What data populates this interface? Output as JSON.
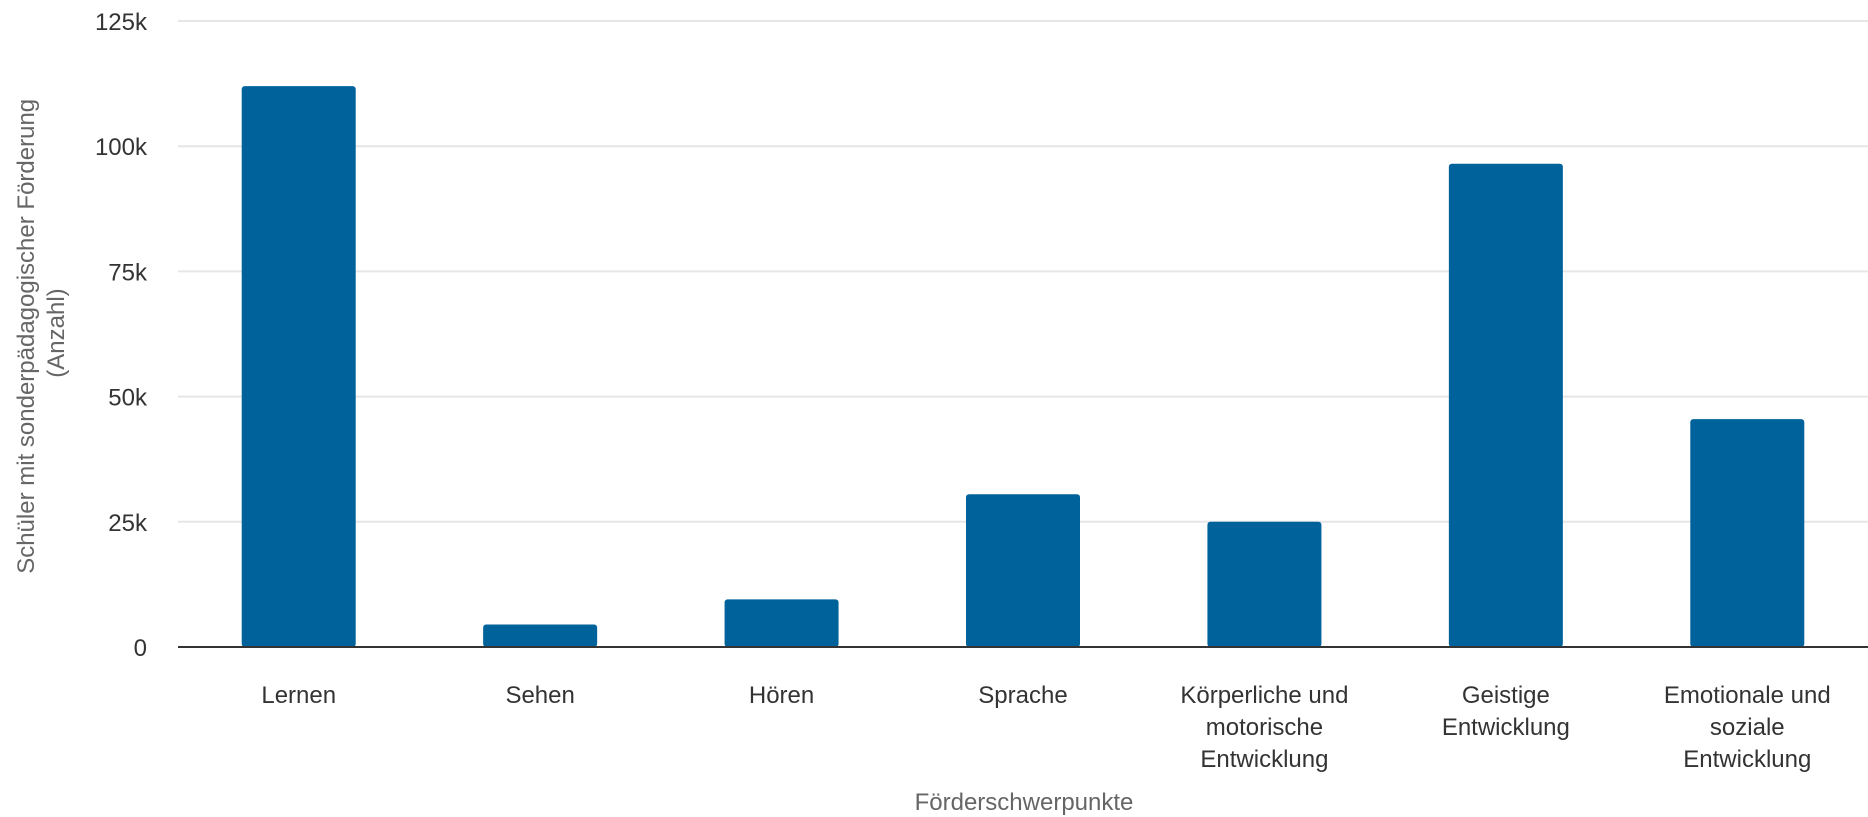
{
  "chart_data": {
    "type": "bar",
    "categories": [
      "Lernen",
      "Sehen",
      "Hören",
      "Sprache",
      "Körperliche und motorische Entwicklung",
      "Geistige Entwicklung",
      "Emotionale und soziale Entwicklung"
    ],
    "category_lines": [
      [
        "Lernen"
      ],
      [
        "Sehen"
      ],
      [
        "Hören"
      ],
      [
        "Sprache"
      ],
      [
        "Körperliche und",
        "motorische",
        "Entwicklung"
      ],
      [
        "Geistige",
        "Entwicklung"
      ],
      [
        "Emotionale und",
        "soziale",
        "Entwicklung"
      ]
    ],
    "values": [
      112000,
      4500,
      9500,
      30500,
      25000,
      96500,
      45500
    ],
    "ylim": [
      0,
      125000
    ],
    "yticks": [
      0,
      25000,
      50000,
      75000,
      100000,
      125000
    ],
    "ytick_labels": [
      "0",
      "25k",
      "50k",
      "75k",
      "100k",
      "125k"
    ],
    "xlabel": "Förderschwerpunkte",
    "ylabel_lines": [
      "Schüler mit sonderpädagogischer Förderung",
      "(Anzahl)"
    ],
    "grid": true,
    "legend": "none",
    "bar_color": "#00629b"
  }
}
